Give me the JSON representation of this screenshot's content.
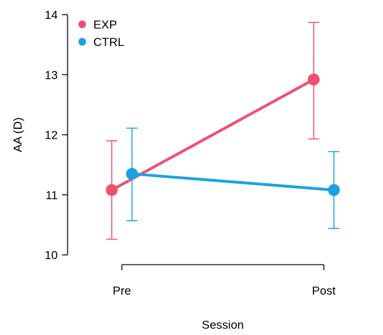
{
  "chart_data": {
    "type": "line",
    "categories": [
      "Pre",
      "Post"
    ],
    "xlabel": "Session",
    "ylabel": "AA (D)",
    "ylim": [
      10,
      14
    ],
    "yticks": [
      10,
      11,
      12,
      13,
      14
    ],
    "grid": false,
    "legend_position": "top-left",
    "series": [
      {
        "name": "EXP",
        "color": "#f0506e",
        "values": [
          11.08,
          12.92
        ],
        "err_low": [
          10.26,
          11.93
        ],
        "err_high": [
          11.9,
          13.87
        ]
      },
      {
        "name": "CTRL",
        "color": "#1ba1e2",
        "values": [
          11.35,
          11.08
        ],
        "err_low": [
          10.57,
          10.44
        ],
        "err_high": [
          12.11,
          11.72
        ]
      }
    ]
  }
}
